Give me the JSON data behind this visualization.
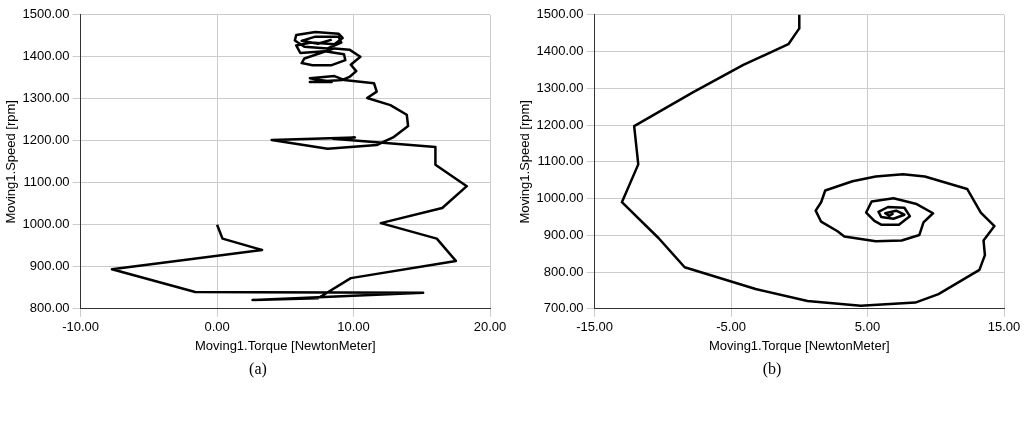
{
  "chart_data": [
    {
      "type": "line",
      "xlabel": "Moving1.Torque [NewtonMeter]",
      "ylabel": "Moving1.Speed [rpm]",
      "annotations": [
        "(a)"
      ],
      "grid": true,
      "legend": false,
      "xlim": [
        -10,
        20
      ],
      "xticks": [
        {
          "value": -10,
          "label": "-10.00"
        },
        {
          "value": 0,
          "label": "0.00"
        },
        {
          "value": 10,
          "label": "10.00"
        },
        {
          "value": 20,
          "label": "20.00"
        }
      ],
      "ylim": [
        800,
        1500
      ],
      "yticks": [
        {
          "value": 800,
          "label": "800.00"
        },
        {
          "value": 900,
          "label": "900.00"
        },
        {
          "value": 1000,
          "label": "1000.00"
        },
        {
          "value": 1100,
          "label": "1100.00"
        },
        {
          "value": 1200,
          "label": "1200.00"
        },
        {
          "value": 1300,
          "label": "1300.00"
        },
        {
          "value": 1400,
          "label": "1400.00"
        },
        {
          "value": 1500,
          "label": "1500.00"
        }
      ],
      "series": [
        {
          "color": "#000000",
          "x": [
            0,
            0.4,
            3.3,
            -7.7,
            -1.6,
            15.1,
            2.6,
            7.4,
            9.8,
            17.5,
            16.1,
            12,
            16.5,
            18.3,
            16,
            16,
            8.5,
            10.1,
            4,
            8.1,
            11.7,
            12.9,
            14,
            13.9,
            12.7,
            11,
            11.7,
            11.5,
            9.3,
            8.6,
            6.8,
            8.4,
            6.8,
            9.2,
            9.7,
            10.2,
            9.8,
            10.5,
            9.7,
            8.6,
            6.4,
            6.2,
            7,
            8.4,
            9.4,
            9.3,
            7.9,
            6.1,
            5.8,
            6.9,
            8.6,
            9.2,
            8.9,
            7.2,
            5.8,
            5.7,
            6.4,
            8.1,
            9.1,
            8.9,
            7.2,
            6.2,
            7.4,
            8.4
          ],
          "values": [
            1000,
            967,
            940,
            894,
            840,
            838,
            821,
            825,
            873,
            914,
            967,
            1004,
            1040,
            1092,
            1143,
            1185,
            1205,
            1208,
            1202,
            1181,
            1190,
            1208,
            1235,
            1262,
            1285,
            1302,
            1317,
            1337,
            1345,
            1354,
            1349,
            1340,
            1340,
            1345,
            1352,
            1366,
            1381,
            1400,
            1417,
            1420,
            1396,
            1385,
            1380,
            1380,
            1392,
            1406,
            1413,
            1409,
            1427,
            1434,
            1430,
            1445,
            1455,
            1459,
            1452,
            1439,
            1424,
            1420,
            1434,
            1448,
            1448,
            1438,
            1431,
            1441
          ]
        }
      ]
    },
    {
      "type": "line",
      "xlabel": "Moving1.Torque [NewtonMeter]",
      "ylabel": "Moving1.Speed [rpm]",
      "annotations": [
        "(b)"
      ],
      "grid": true,
      "legend": false,
      "xlim": [
        -15,
        15
      ],
      "xticks": [
        {
          "value": -15,
          "label": "-15.00"
        },
        {
          "value": -5,
          "label": "-5.00"
        },
        {
          "value": 5,
          "label": "5.00"
        },
        {
          "value": 15,
          "label": "15.00"
        }
      ],
      "ylim": [
        700,
        1500
      ],
      "yticks": [
        {
          "value": 700,
          "label": "700.00"
        },
        {
          "value": 800,
          "label": "800.00"
        },
        {
          "value": 900,
          "label": "900.00"
        },
        {
          "value": 1000,
          "label": "1000.00"
        },
        {
          "value": 1100,
          "label": "1100.00"
        },
        {
          "value": 1200,
          "label": "1200.00"
        },
        {
          "value": 1300,
          "label": "1300.00"
        },
        {
          "value": 1400,
          "label": "1400.00"
        },
        {
          "value": 1500,
          "label": "1500.00"
        }
      ],
      "series": [
        {
          "color": "#000000",
          "x": [
            0,
            0,
            -0.8,
            -4.1,
            -7.8,
            -12.1,
            -11.8,
            -13,
            -10.3,
            -8.4,
            -3.2,
            0.6,
            4.5,
            8.5,
            10.2,
            13.2,
            13.6,
            13.5,
            14.3,
            13.3,
            12.3,
            9.2,
            7.6,
            5.6,
            3.9,
            1.9,
            1.6,
            1.2,
            1.6,
            2.8,
            3.3,
            5.6,
            7.5,
            8.8,
            9.1,
            9.8,
            8.6,
            6.9,
            5.3,
            4.9,
            5.5,
            6,
            7.3,
            8.1,
            7.7,
            6.5,
            5.8,
            6,
            6.9,
            7.7,
            7.1,
            6.3,
            6.6,
            6.9
          ],
          "values": [
            1500,
            1463,
            1420,
            1364,
            1289,
            1197,
            1093,
            990,
            892,
            813,
            754,
            721,
            708,
            717,
            740,
            806,
            846,
            886,
            925,
            962,
            1026,
            1060,
            1066,
            1060,
            1047,
            1022,
            990,
            967,
            937,
            911,
            897,
            884,
            886,
            901,
            935,
            960,
            985,
            1001,
            992,
            962,
            939,
            929,
            929,
            952,
            975,
            977,
            964,
            950,
            945,
            956,
            967,
            960,
            953,
            960
          ]
        }
      ]
    }
  ]
}
